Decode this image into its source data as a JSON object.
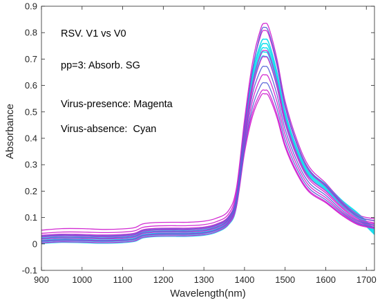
{
  "chart_data": {
    "type": "line",
    "xlabel": "Wavelength(nm)",
    "ylabel": "Absorbance",
    "xlim": [
      900,
      1720
    ],
    "ylim": [
      -0.1,
      0.9
    ],
    "xticks": [
      900,
      1000,
      1100,
      1200,
      1300,
      1400,
      1500,
      1600,
      1700
    ],
    "xtick_labels": [
      "900",
      "1000",
      "1100",
      "1200",
      "1300",
      "1400",
      "1500",
      "1600",
      "1700"
    ],
    "yticks": [
      -0.1,
      0,
      0.1,
      0.2,
      0.3,
      0.4,
      0.5,
      0.6,
      0.7,
      0.8,
      0.9
    ],
    "ytick_labels": [
      "-0.1",
      "0",
      "0.1",
      "0.2",
      "0.3",
      "0.4",
      "0.5",
      "0.6",
      "0.7",
      "0.8",
      "0.9"
    ],
    "grid": false,
    "annotations": [
      "RSV. V1 vs V0",
      "pp=3: Absorb. SG",
      "Virus-presence: Magenta",
      "Virus-absence:  Cyan"
    ],
    "colors": {
      "magenta": "#d020d0",
      "cyan": "#10dcec",
      "blue": "#5a64d8"
    },
    "x": [
      900,
      950,
      1000,
      1050,
      1100,
      1130,
      1150,
      1180,
      1220,
      1260,
      1300,
      1330,
      1360,
      1380,
      1400,
      1420,
      1440,
      1450,
      1460,
      1480,
      1500,
      1530,
      1560,
      1600,
      1640,
      1680,
      1720
    ],
    "series": [
      {
        "color": "magenta",
        "values": [
          0.052,
          0.058,
          0.058,
          0.055,
          0.057,
          0.062,
          0.076,
          0.081,
          0.082,
          0.082,
          0.086,
          0.097,
          0.125,
          0.21,
          0.47,
          0.69,
          0.815,
          0.835,
          0.818,
          0.7,
          0.54,
          0.39,
          0.29,
          0.23,
          0.16,
          0.11,
          0.095
        ]
      },
      {
        "color": "magenta",
        "values": [
          0.04,
          0.045,
          0.045,
          0.043,
          0.045,
          0.05,
          0.063,
          0.068,
          0.069,
          0.069,
          0.073,
          0.084,
          0.112,
          0.195,
          0.45,
          0.665,
          0.79,
          0.808,
          0.79,
          0.675,
          0.518,
          0.372,
          0.275,
          0.218,
          0.15,
          0.102,
          0.087
        ]
      },
      {
        "color": "magenta",
        "values": [
          0.033,
          0.037,
          0.036,
          0.034,
          0.036,
          0.041,
          0.054,
          0.059,
          0.06,
          0.06,
          0.064,
          0.075,
          0.103,
          0.18,
          0.42,
          0.61,
          0.718,
          0.732,
          0.718,
          0.614,
          0.472,
          0.338,
          0.25,
          0.2,
          0.14,
          0.095,
          0.08
        ]
      },
      {
        "color": "magenta",
        "values": [
          0.027,
          0.031,
          0.03,
          0.028,
          0.03,
          0.035,
          0.048,
          0.053,
          0.054,
          0.054,
          0.058,
          0.069,
          0.097,
          0.172,
          0.4,
          0.59,
          0.695,
          0.708,
          0.694,
          0.594,
          0.457,
          0.327,
          0.242,
          0.193,
          0.135,
          0.09,
          0.076
        ]
      },
      {
        "color": "magenta",
        "values": [
          0.018,
          0.022,
          0.021,
          0.019,
          0.021,
          0.026,
          0.039,
          0.044,
          0.045,
          0.045,
          0.049,
          0.06,
          0.088,
          0.16,
          0.38,
          0.545,
          0.63,
          0.64,
          0.628,
          0.538,
          0.413,
          0.296,
          0.219,
          0.175,
          0.122,
          0.082,
          0.068
        ]
      },
      {
        "color": "magenta",
        "values": [
          0.01,
          0.014,
          0.013,
          0.011,
          0.013,
          0.018,
          0.031,
          0.036,
          0.037,
          0.037,
          0.041,
          0.052,
          0.08,
          0.148,
          0.36,
          0.5,
          0.574,
          0.582,
          0.572,
          0.49,
          0.376,
          0.27,
          0.2,
          0.16,
          0.112,
          0.075,
          0.062
        ]
      },
      {
        "color": "magenta",
        "values": [
          0.004,
          0.008,
          0.007,
          0.005,
          0.007,
          0.012,
          0.025,
          0.03,
          0.031,
          0.031,
          0.035,
          0.046,
          0.074,
          0.14,
          0.345,
          0.485,
          0.56,
          0.568,
          0.558,
          0.478,
          0.367,
          0.263,
          0.195,
          0.156,
          0.108,
          0.072,
          0.059
        ]
      },
      {
        "color": "blue",
        "values": [
          0.03,
          0.034,
          0.033,
          0.031,
          0.033,
          0.038,
          0.051,
          0.056,
          0.057,
          0.057,
          0.061,
          0.072,
          0.1,
          0.176,
          0.44,
          0.66,
          0.8,
          0.82,
          0.8,
          0.685,
          0.526,
          0.378,
          0.28,
          0.222,
          0.155,
          0.104,
          0.088
        ]
      },
      {
        "color": "blue",
        "values": [
          0.022,
          0.026,
          0.025,
          0.023,
          0.025,
          0.03,
          0.043,
          0.048,
          0.049,
          0.049,
          0.053,
          0.064,
          0.092,
          0.165,
          0.395,
          0.57,
          0.66,
          0.672,
          0.659,
          0.565,
          0.434,
          0.311,
          0.23,
          0.184,
          0.128,
          0.086,
          0.072
        ]
      },
      {
        "color": "blue",
        "values": [
          0.012,
          0.016,
          0.015,
          0.013,
          0.015,
          0.02,
          0.033,
          0.038,
          0.039,
          0.039,
          0.043,
          0.054,
          0.082,
          0.152,
          0.365,
          0.52,
          0.6,
          0.61,
          0.598,
          0.512,
          0.393,
          0.282,
          0.209,
          0.167,
          0.117,
          0.078,
          0.064
        ]
      },
      {
        "color": "cyan",
        "values": [
          0.026,
          0.03,
          0.029,
          0.027,
          0.029,
          0.034,
          0.047,
          0.052,
          0.053,
          0.053,
          0.057,
          0.068,
          0.096,
          0.17,
          0.43,
          0.65,
          0.76,
          0.775,
          0.76,
          0.65,
          0.5,
          0.36,
          0.275,
          0.225,
          0.165,
          0.115,
          0.055
        ]
      },
      {
        "color": "cyan",
        "values": [
          0.02,
          0.024,
          0.023,
          0.021,
          0.023,
          0.028,
          0.041,
          0.046,
          0.047,
          0.047,
          0.051,
          0.062,
          0.09,
          0.162,
          0.42,
          0.64,
          0.745,
          0.758,
          0.744,
          0.637,
          0.49,
          0.352,
          0.268,
          0.22,
          0.16,
          0.11,
          0.05
        ]
      },
      {
        "color": "cyan",
        "values": [
          0.014,
          0.018,
          0.017,
          0.015,
          0.017,
          0.022,
          0.035,
          0.04,
          0.041,
          0.041,
          0.045,
          0.056,
          0.084,
          0.155,
          0.41,
          0.625,
          0.73,
          0.742,
          0.728,
          0.623,
          0.478,
          0.344,
          0.262,
          0.215,
          0.155,
          0.105,
          0.045
        ]
      },
      {
        "color": "cyan",
        "values": [
          0.008,
          0.012,
          0.011,
          0.009,
          0.011,
          0.016,
          0.029,
          0.034,
          0.035,
          0.035,
          0.039,
          0.05,
          0.078,
          0.148,
          0.4,
          0.612,
          0.715,
          0.726,
          0.712,
          0.61,
          0.468,
          0.337,
          0.256,
          0.21,
          0.15,
          0.1,
          0.04
        ]
      },
      {
        "color": "cyan",
        "values": [
          0.002,
          0.006,
          0.005,
          0.003,
          0.005,
          0.01,
          0.023,
          0.028,
          0.029,
          0.029,
          0.033,
          0.044,
          0.072,
          0.14,
          0.39,
          0.6,
          0.7,
          0.71,
          0.696,
          0.596,
          0.457,
          0.329,
          0.25,
          0.205,
          0.145,
          0.096,
          0.036
        ]
      }
    ]
  }
}
